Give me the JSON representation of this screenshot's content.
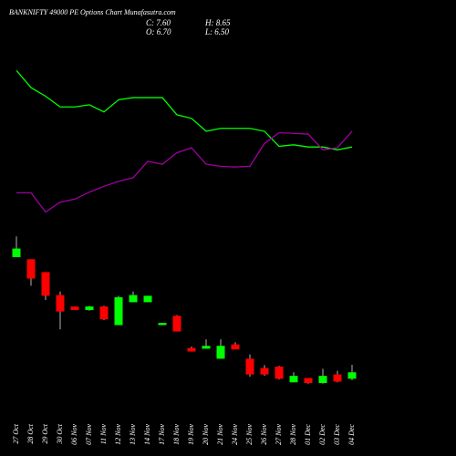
{
  "chart_data": {
    "type": "candlestick",
    "title": "BANKNIFTY 49000 PE Options Chart Munafasutra.com",
    "stats": [
      "C: 7.60",
      "O: 6.70",
      "H: 8.65",
      "L: 6.50"
    ],
    "categories": [
      "27 Oct",
      "28 Oct",
      "29 Oct",
      "30 Oct",
      "06 Nov",
      "07 Nov",
      "11 Nov",
      "12 Nov",
      "13 Nov",
      "14 Nov",
      "17 Nov",
      "18 Nov",
      "19 Nov",
      "20 Nov",
      "21 Nov",
      "24 Nov",
      "25 Nov",
      "26 Nov",
      "27 Nov",
      "28 Nov",
      "01 Dec",
      "02 Dec",
      "03 Dec",
      "04 Dec"
    ],
    "open": [
      23.7,
      23.4,
      21.6,
      18.4,
      16.8,
      16.3,
      16.8,
      14.2,
      17.4,
      17.4,
      14.2,
      15.5,
      11.0,
      10.9,
      9.5,
      11.5,
      9.5,
      8.2,
      8.4,
      6.2,
      6.8,
      6.1,
      7.3,
      6.7
    ],
    "high": [
      26.6,
      23.4,
      21.6,
      18.9,
      16.8,
      16.9,
      16.9,
      18.3,
      18.9,
      18.3,
      14.5,
      15.6,
      11.2,
      12.2,
      12.2,
      11.8,
      10.1,
      8.6,
      8.5,
      7.6,
      6.8,
      8.1,
      7.8,
      8.65
    ],
    "low": [
      23.7,
      19.7,
      17.7,
      13.6,
      16.3,
      16.2,
      14.9,
      14.2,
      17.4,
      17.4,
      14.2,
      13.3,
      10.5,
      10.9,
      9.5,
      10.8,
      7.0,
      7.1,
      6.6,
      6.2,
      6.0,
      6.0,
      6.2,
      6.5
    ],
    "close": [
      24.9,
      20.7,
      18.3,
      16.1,
      16.3,
      16.8,
      15.0,
      18.1,
      18.4,
      18.3,
      14.5,
      13.3,
      10.5,
      11.3,
      11.3,
      10.8,
      7.3,
      7.3,
      6.7,
      7.1,
      6.1,
      7.1,
      6.3,
      7.6
    ],
    "up_color": "#00ff00",
    "down_color": "#ff0000",
    "lines": [
      {
        "color": "#00ff00",
        "values": [
          49.8,
          47.4,
          46.2,
          44.7,
          44.7,
          45.0,
          44.0,
          45.7,
          46.0,
          46.0,
          46.0,
          43.6,
          43.1,
          41.3,
          41.7,
          41.7,
          41.7,
          41.3,
          39.2,
          39.4,
          39.1,
          39.1,
          38.7,
          39.1
        ]
      },
      {
        "color": "#a000a0",
        "values": [
          32.7,
          32.7,
          30.0,
          31.4,
          31.8,
          32.8,
          33.6,
          34.3,
          34.8,
          37.1,
          36.7,
          38.3,
          39.0,
          36.7,
          36.4,
          36.3,
          36.4,
          39.6,
          41.1,
          41.0,
          40.9,
          38.7,
          39.0,
          41.3
        ]
      }
    ],
    "ylim": [
      1,
      52
    ]
  }
}
